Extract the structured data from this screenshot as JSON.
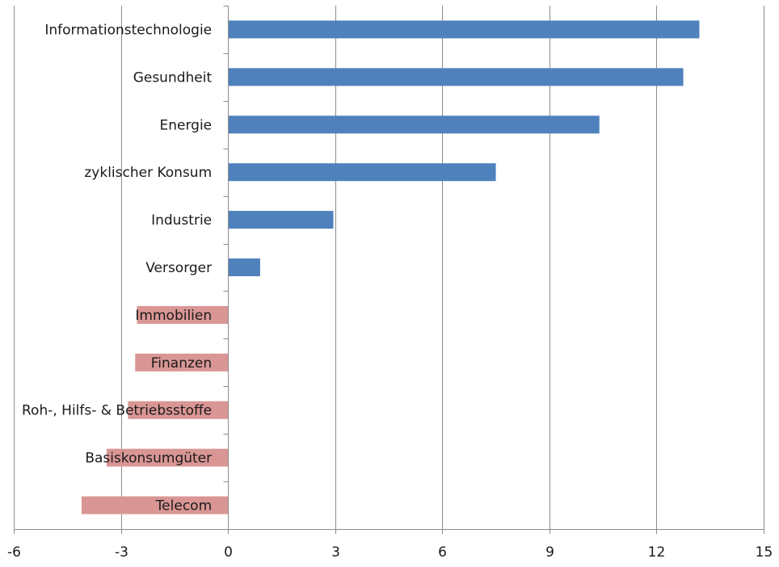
{
  "chart_data": {
    "type": "bar",
    "orientation": "horizontal",
    "title": "",
    "xlabel": "",
    "ylabel": "",
    "xlim": [
      -6,
      15
    ],
    "x_ticks": [
      -6,
      -3,
      0,
      3,
      6,
      9,
      12,
      15
    ],
    "grid": true,
    "legend": "none",
    "categories": [
      "Informationstechnologie",
      "Gesundheit",
      "Energie",
      "zyklischer Konsum",
      "Industrie",
      "Versorger",
      "Immobilien",
      "Finanzen",
      "Roh-, Hilfs- & Betriebsstoffe",
      "Basiskonsumgüter",
      "Telecom"
    ],
    "values": [
      13.2,
      12.75,
      10.4,
      7.5,
      2.95,
      0.9,
      -2.55,
      -2.6,
      -2.8,
      -3.4,
      -4.1
    ],
    "colors": {
      "positive": "#4f81bd",
      "negative": "#d99694",
      "grid": "#8c8c8c"
    }
  }
}
